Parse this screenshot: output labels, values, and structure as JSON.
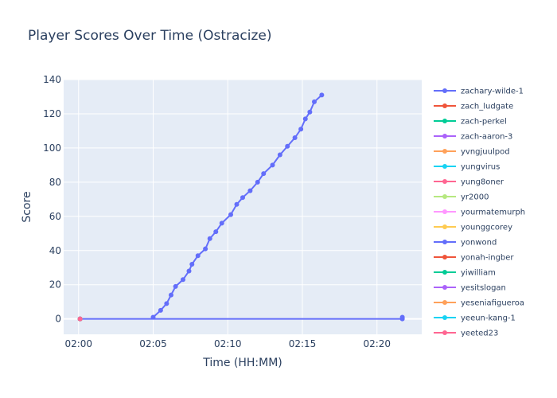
{
  "chart_data": {
    "type": "line",
    "title": "Player Scores Over Time (Ostracize)",
    "xlabel": "Time (HH:MM)",
    "ylabel": "Score",
    "x_ticks": [
      "02:00",
      "02:05",
      "02:10",
      "02:15",
      "02:20"
    ],
    "x_range_minutes": [
      -1,
      23
    ],
    "ylim": [
      -9,
      140
    ],
    "y_ticks": [
      0,
      20,
      40,
      60,
      80,
      100,
      120,
      140
    ],
    "grid": true,
    "legend_position": "right",
    "series": [
      {
        "name": "zachary-wilde-1",
        "color": "#636efa",
        "points": [
          {
            "t": 0.1,
            "y": 0
          },
          {
            "t": 21.7,
            "y": 0
          },
          {
            "t": 21.7,
            "y": 1
          }
        ]
      },
      {
        "name": "zach_ludgate",
        "color": "#EF553B",
        "points": [
          {
            "t": 0.1,
            "y": 0
          }
        ]
      },
      {
        "name": "zach-perkel",
        "color": "#00cc96",
        "points": [
          {
            "t": 0.1,
            "y": 0
          }
        ]
      },
      {
        "name": "zach-aaron-3",
        "color": "#ab63fa",
        "points": [
          {
            "t": 0.1,
            "y": 0
          }
        ]
      },
      {
        "name": "yvngjuulpod",
        "color": "#FFA15A",
        "points": [
          {
            "t": 0.1,
            "y": 0
          }
        ]
      },
      {
        "name": "yungvirus",
        "color": "#19d3f3",
        "points": [
          {
            "t": 0.1,
            "y": 0
          }
        ]
      },
      {
        "name": "yung8oner",
        "color": "#FF6692",
        "points": [
          {
            "t": 0.1,
            "y": 0
          }
        ]
      },
      {
        "name": "yr2000",
        "color": "#B6E880",
        "points": [
          {
            "t": 0.1,
            "y": 0
          }
        ]
      },
      {
        "name": "yourmatemurph",
        "color": "#FF97FF",
        "points": [
          {
            "t": 0.1,
            "y": 0
          }
        ]
      },
      {
        "name": "younggcorey",
        "color": "#FECB52",
        "points": [
          {
            "t": 0.1,
            "y": 0
          }
        ]
      },
      {
        "name": "yonwond",
        "color": "#636efa",
        "points": [
          {
            "t": 5.0,
            "y": 1
          },
          {
            "t": 5.5,
            "y": 5
          },
          {
            "t": 5.9,
            "y": 9
          },
          {
            "t": 6.2,
            "y": 14
          },
          {
            "t": 6.5,
            "y": 19
          },
          {
            "t": 7.0,
            "y": 23
          },
          {
            "t": 7.4,
            "y": 28
          },
          {
            "t": 7.6,
            "y": 32
          },
          {
            "t": 8.0,
            "y": 37
          },
          {
            "t": 8.5,
            "y": 41
          },
          {
            "t": 8.8,
            "y": 47
          },
          {
            "t": 9.2,
            "y": 51
          },
          {
            "t": 9.6,
            "y": 56
          },
          {
            "t": 10.2,
            "y": 61
          },
          {
            "t": 10.6,
            "y": 67
          },
          {
            "t": 11.0,
            "y": 71
          },
          {
            "t": 11.5,
            "y": 75
          },
          {
            "t": 12.0,
            "y": 80
          },
          {
            "t": 12.4,
            "y": 85
          },
          {
            "t": 13.0,
            "y": 90
          },
          {
            "t": 13.5,
            "y": 96
          },
          {
            "t": 14.0,
            "y": 101
          },
          {
            "t": 14.5,
            "y": 106
          },
          {
            "t": 14.9,
            "y": 111
          },
          {
            "t": 15.2,
            "y": 117
          },
          {
            "t": 15.5,
            "y": 121
          },
          {
            "t": 15.8,
            "y": 127
          },
          {
            "t": 16.3,
            "y": 131
          }
        ]
      },
      {
        "name": "yonah-ingber",
        "color": "#EF553B",
        "points": [
          {
            "t": 0.1,
            "y": 0
          }
        ]
      },
      {
        "name": "yiwilliam",
        "color": "#00cc96",
        "points": [
          {
            "t": 0.1,
            "y": 0
          }
        ]
      },
      {
        "name": "yesitslogan",
        "color": "#ab63fa",
        "points": [
          {
            "t": 0.1,
            "y": 0
          }
        ]
      },
      {
        "name": "yeseniafigueroa",
        "color": "#FFA15A",
        "points": [
          {
            "t": 0.1,
            "y": 0
          }
        ]
      },
      {
        "name": "yeeun-kang-1",
        "color": "#19d3f3",
        "points": [
          {
            "t": 0.1,
            "y": 0
          }
        ]
      },
      {
        "name": "yeeted23",
        "color": "#FF6692",
        "points": [
          {
            "t": 0.1,
            "y": 0
          }
        ]
      }
    ]
  }
}
